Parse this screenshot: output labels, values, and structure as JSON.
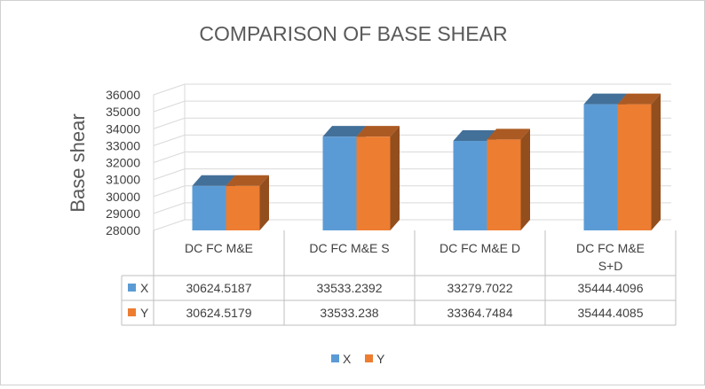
{
  "chart_data": {
    "type": "bar",
    "title": "COMPARISON OF BASE SHEAR",
    "ylabel": "Base shear",
    "xlabel": "",
    "ylim": [
      28000,
      36000
    ],
    "ytick_step": 1000,
    "categories": [
      "DC FC M&E",
      "DC FC M&E S",
      "DC FC M&E D",
      "DC FC M&E S+D"
    ],
    "series": [
      {
        "name": "X",
        "color": "#5B9BD5",
        "values": [
          30624.5187,
          33533.2392,
          33279.7022,
          35444.4096
        ],
        "labels": [
          "30624.5187",
          "33533.2392",
          "33279.7022",
          "35444.4096"
        ]
      },
      {
        "name": "Y",
        "color": "#ED7D31",
        "values": [
          30624.5179,
          33533.238,
          33364.7484,
          35444.4085
        ],
        "labels": [
          "30624.5179",
          "33533.238",
          "33364.7484",
          "35444.4085"
        ]
      }
    ],
    "legend_position": "bottom",
    "data_table": true
  }
}
